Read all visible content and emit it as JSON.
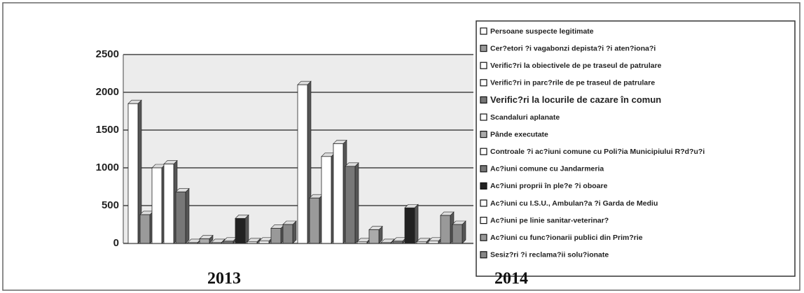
{
  "chart_data": {
    "type": "bar",
    "categories": [
      "2013",
      "2014"
    ],
    "ylim": [
      0,
      2500
    ],
    "yticks": [
      0,
      500,
      1000,
      1500,
      2000,
      2500
    ],
    "grid": true,
    "series": [
      {
        "name": "Persoane suspecte legitimate",
        "color": "#ffffff",
        "values": [
          1850,
          2100
        ]
      },
      {
        "name": "Cer?etori ?i vagabonzi depista?i ?i aten?iona?i",
        "color": "#9a9a9a",
        "values": [
          380,
          600
        ]
      },
      {
        "name": "Verific?ri la obiectivele de pe traseul de patrulare",
        "color": "#ffffff",
        "values": [
          1000,
          1150
        ]
      },
      {
        "name": "Verific?ri in parc?rile de pe traseul de patrulare",
        "color": "#ffffff",
        "values": [
          1050,
          1320
        ]
      },
      {
        "name": "Verific?ri la locurile de cazare în comun",
        "color": "#777777",
        "values": [
          680,
          1020
        ]
      },
      {
        "name": "Scandaluri aplanate",
        "color": "#ffffff",
        "values": [
          10,
          20
        ]
      },
      {
        "name": "Pânde executate",
        "color": "#aaaaaa",
        "values": [
          60,
          180
        ]
      },
      {
        "name": "Controale ?i ac?iuni comune cu Poli?ia Municipiului R?d?u?i",
        "color": "#ffffff",
        "values": [
          10,
          10
        ]
      },
      {
        "name": "Ac?iuni comune cu Jandarmeria",
        "color": "#777777",
        "values": [
          30,
          30
        ]
      },
      {
        "name": "Ac?iuni proprii în ple?e ?i oboare",
        "color": "#222222",
        "values": [
          330,
          470
        ]
      },
      {
        "name": "Ac?iuni cu I.S.U., Ambulan?a ?i Garda de Mediu",
        "color": "#ffffff",
        "values": [
          20,
          20
        ]
      },
      {
        "name": "Ac?iuni pe linie sanitar-veterinar?",
        "color": "#ffffff",
        "values": [
          30,
          30
        ]
      },
      {
        "name": "Ac?iuni cu func?ionarii publici din Prim?rie",
        "color": "#999999",
        "values": [
          200,
          370
        ]
      },
      {
        "name": "Sesiz?ri ?i reclama?ii solu?ionate",
        "color": "#888888",
        "values": [
          250,
          250
        ]
      }
    ]
  }
}
